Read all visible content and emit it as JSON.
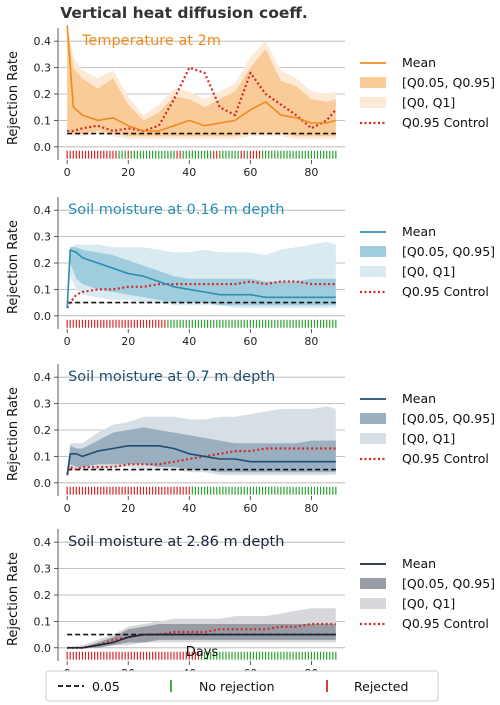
{
  "title": "Vertical heat diffusion coeff.",
  "common": {
    "ylabel": "Rejection Rate",
    "xlabel": "Days",
    "ylim": [
      -0.05,
      0.45
    ],
    "yticks": [
      0.0,
      0.1,
      0.2,
      0.3,
      0.4
    ],
    "ytick_labels": [
      "0.0",
      "0.1",
      "0.2",
      "0.3",
      "0.4"
    ],
    "xticks": [
      0,
      20,
      40,
      60,
      80
    ],
    "xtick_labels": [
      "0",
      "20",
      "40",
      "60",
      "80"
    ],
    "threshold": 0.05,
    "days": 89
  },
  "legend_bottom": {
    "threshold_label": "0.05",
    "no_rejection_label": "No rejection",
    "rejected_label": "Rejected",
    "no_rejection_color": "#2ca02c",
    "rejected_color": "#d62728"
  },
  "chart_data": [
    {
      "type": "line",
      "title": "Temperature at 2m",
      "color": "#ef8c1d",
      "legend": {
        "mean": "Mean",
        "inner": "[Q0.05, Q0.95]",
        "outer": "[Q0, Q1]",
        "control": "Q0.95 Control"
      },
      "x": [
        0,
        2,
        5,
        10,
        15,
        20,
        25,
        30,
        35,
        40,
        45,
        50,
        55,
        60,
        65,
        70,
        75,
        80,
        85,
        88
      ],
      "mean": [
        0.46,
        0.15,
        0.12,
        0.1,
        0.11,
        0.08,
        0.06,
        0.06,
        0.08,
        0.1,
        0.08,
        0.09,
        0.1,
        0.14,
        0.17,
        0.12,
        0.11,
        0.09,
        0.09,
        0.1
      ],
      "q05": [
        0.06,
        0.05,
        0.05,
        0.06,
        0.05,
        0.04,
        0.04,
        0.04,
        0.04,
        0.04,
        0.04,
        0.04,
        0.04,
        0.05,
        0.05,
        0.05,
        0.04,
        0.04,
        0.04,
        0.04
      ],
      "q95": [
        0.46,
        0.3,
        0.26,
        0.22,
        0.26,
        0.16,
        0.1,
        0.13,
        0.19,
        0.18,
        0.15,
        0.18,
        0.21,
        0.3,
        0.37,
        0.25,
        0.23,
        0.18,
        0.17,
        0.18
      ],
      "q0": [
        0.05,
        0.04,
        0.04,
        0.05,
        0.04,
        0.03,
        0.03,
        0.03,
        0.03,
        0.03,
        0.03,
        0.03,
        0.03,
        0.04,
        0.04,
        0.04,
        0.03,
        0.03,
        0.03,
        0.03
      ],
      "q1": [
        0.46,
        0.34,
        0.29,
        0.26,
        0.29,
        0.19,
        0.12,
        0.16,
        0.22,
        0.21,
        0.18,
        0.21,
        0.24,
        0.34,
        0.4,
        0.29,
        0.26,
        0.21,
        0.2,
        0.21
      ],
      "control": [
        0.06,
        0.06,
        0.07,
        0.08,
        0.06,
        0.07,
        0.06,
        0.08,
        0.18,
        0.3,
        0.28,
        0.15,
        0.12,
        0.28,
        0.2,
        0.16,
        0.12,
        0.07,
        0.1,
        0.14
      ],
      "rejected_days": [
        0,
        1,
        2,
        3,
        4,
        5,
        6,
        7,
        8,
        9,
        10,
        11,
        12,
        13,
        14,
        15,
        16,
        20,
        36,
        37,
        48,
        49,
        57,
        58,
        60,
        61,
        62,
        63
      ]
    },
    {
      "type": "line",
      "title": "Soil moisture at 0.16 m depth",
      "color": "#2b8fb3",
      "legend": {
        "mean": "Mean",
        "inner": "[Q0.05, Q0.95]",
        "outer": "[Q0, Q1]",
        "control": "Q0.95 Control"
      },
      "x": [
        0,
        1,
        3,
        5,
        10,
        15,
        20,
        25,
        30,
        35,
        40,
        45,
        50,
        55,
        60,
        65,
        70,
        75,
        80,
        85,
        88
      ],
      "mean": [
        0.03,
        0.25,
        0.24,
        0.22,
        0.2,
        0.18,
        0.16,
        0.15,
        0.13,
        0.11,
        0.1,
        0.09,
        0.08,
        0.08,
        0.08,
        0.07,
        0.07,
        0.07,
        0.07,
        0.07,
        0.07
      ],
      "q05": [
        0.02,
        0.2,
        0.14,
        0.12,
        0.1,
        0.09,
        0.08,
        0.07,
        0.06,
        0.05,
        0.05,
        0.05,
        0.04,
        0.04,
        0.04,
        0.04,
        0.04,
        0.04,
        0.04,
        0.04,
        0.04
      ],
      "q95": [
        0.03,
        0.26,
        0.26,
        0.25,
        0.24,
        0.23,
        0.21,
        0.19,
        0.17,
        0.15,
        0.14,
        0.14,
        0.14,
        0.14,
        0.14,
        0.13,
        0.13,
        0.13,
        0.14,
        0.14,
        0.14
      ],
      "q0": [
        0.02,
        0.15,
        0.1,
        0.08,
        0.07,
        0.06,
        0.06,
        0.05,
        0.05,
        0.04,
        0.04,
        0.04,
        0.04,
        0.03,
        0.03,
        0.03,
        0.03,
        0.03,
        0.03,
        0.03,
        0.03
      ],
      "q1": [
        0.03,
        0.26,
        0.27,
        0.27,
        0.27,
        0.26,
        0.26,
        0.26,
        0.25,
        0.24,
        0.24,
        0.25,
        0.24,
        0.24,
        0.24,
        0.23,
        0.25,
        0.26,
        0.27,
        0.28,
        0.27
      ],
      "control": [
        0.03,
        0.05,
        0.08,
        0.09,
        0.1,
        0.1,
        0.11,
        0.11,
        0.12,
        0.12,
        0.12,
        0.12,
        0.12,
        0.12,
        0.13,
        0.12,
        0.13,
        0.13,
        0.12,
        0.12,
        0.12
      ],
      "rejected_start": 0,
      "rejected_end": 33
    },
    {
      "type": "line",
      "title": "Soil moisture at 0.7 m depth",
      "color": "#1f4e73",
      "legend": {
        "mean": "Mean",
        "inner": "[Q0.05, Q0.95]",
        "outer": "[Q0, Q1]",
        "control": "Q0.95 Control"
      },
      "x": [
        0,
        1,
        3,
        5,
        10,
        15,
        20,
        25,
        30,
        35,
        40,
        45,
        50,
        55,
        60,
        65,
        70,
        75,
        80,
        85,
        88
      ],
      "mean": [
        0.03,
        0.11,
        0.11,
        0.1,
        0.12,
        0.13,
        0.14,
        0.14,
        0.14,
        0.13,
        0.11,
        0.1,
        0.09,
        0.09,
        0.08,
        0.08,
        0.08,
        0.08,
        0.08,
        0.08,
        0.08
      ],
      "q05": [
        0.02,
        0.07,
        0.06,
        0.06,
        0.07,
        0.07,
        0.07,
        0.07,
        0.06,
        0.06,
        0.05,
        0.05,
        0.04,
        0.04,
        0.04,
        0.04,
        0.04,
        0.04,
        0.04,
        0.04,
        0.04
      ],
      "q95": [
        0.03,
        0.14,
        0.13,
        0.13,
        0.16,
        0.19,
        0.2,
        0.21,
        0.2,
        0.19,
        0.18,
        0.17,
        0.16,
        0.15,
        0.15,
        0.15,
        0.15,
        0.15,
        0.16,
        0.16,
        0.16
      ],
      "q0": [
        0.02,
        0.05,
        0.05,
        0.05,
        0.05,
        0.06,
        0.06,
        0.05,
        0.05,
        0.05,
        0.04,
        0.04,
        0.03,
        0.03,
        0.03,
        0.03,
        0.03,
        0.03,
        0.03,
        0.03,
        0.03
      ],
      "q1": [
        0.03,
        0.15,
        0.15,
        0.15,
        0.19,
        0.22,
        0.23,
        0.25,
        0.25,
        0.25,
        0.24,
        0.24,
        0.25,
        0.25,
        0.26,
        0.27,
        0.28,
        0.28,
        0.28,
        0.29,
        0.28
      ],
      "control": [
        0.03,
        0.06,
        0.05,
        0.06,
        0.06,
        0.06,
        0.07,
        0.07,
        0.07,
        0.08,
        0.09,
        0.1,
        0.11,
        0.12,
        0.12,
        0.13,
        0.13,
        0.13,
        0.13,
        0.13,
        0.13
      ],
      "rejected_start": 0,
      "rejected_end": 41
    },
    {
      "type": "line",
      "title": "Soil moisture at 2.86 m depth",
      "color": "#1a2538",
      "legend": {
        "mean": "Mean",
        "inner": "[Q0.05, Q0.95]",
        "outer": "[Q0, Q1]",
        "control": "Q0.95 Control"
      },
      "x": [
        0,
        5,
        10,
        15,
        20,
        25,
        30,
        35,
        40,
        45,
        50,
        55,
        60,
        65,
        70,
        75,
        80,
        85,
        88
      ],
      "mean": [
        0.0,
        0.0,
        0.01,
        0.02,
        0.04,
        0.05,
        0.05,
        0.05,
        0.05,
        0.05,
        0.05,
        0.05,
        0.05,
        0.05,
        0.05,
        0.05,
        0.05,
        0.05,
        0.05
      ],
      "q05": [
        0.0,
        0.0,
        0.0,
        0.01,
        0.02,
        0.02,
        0.03,
        0.03,
        0.03,
        0.03,
        0.03,
        0.03,
        0.03,
        0.03,
        0.03,
        0.03,
        0.03,
        0.03,
        0.03
      ],
      "q95": [
        0.0,
        0.0,
        0.02,
        0.04,
        0.07,
        0.08,
        0.09,
        0.09,
        0.09,
        0.09,
        0.09,
        0.09,
        0.09,
        0.09,
        0.09,
        0.09,
        0.09,
        0.09,
        0.09
      ],
      "q0": [
        0.0,
        0.0,
        0.0,
        0.01,
        0.01,
        0.02,
        0.02,
        0.02,
        0.02,
        0.02,
        0.02,
        0.02,
        0.02,
        0.02,
        0.02,
        0.02,
        0.02,
        0.02,
        0.02
      ],
      "q1": [
        0.0,
        0.01,
        0.03,
        0.05,
        0.08,
        0.09,
        0.1,
        0.11,
        0.11,
        0.11,
        0.11,
        0.12,
        0.12,
        0.12,
        0.13,
        0.14,
        0.15,
        0.15,
        0.15
      ],
      "control": [
        0.0,
        0.0,
        0.01,
        0.03,
        0.04,
        0.05,
        0.05,
        0.06,
        0.06,
        0.06,
        0.07,
        0.07,
        0.07,
        0.07,
        0.08,
        0.08,
        0.09,
        0.09,
        0.09
      ],
      "rejected_start": 0,
      "rejected_end": 44
    }
  ]
}
